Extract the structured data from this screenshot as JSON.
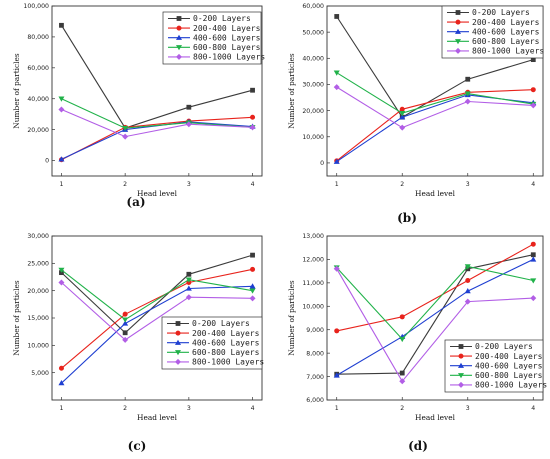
{
  "chart_data": [
    {
      "type": "line",
      "panel_label": "(a)",
      "xlabel": "Head level",
      "ylabel": "Number of particles",
      "x": [
        1,
        2,
        3,
        4
      ],
      "x_tick_labels": [
        "1",
        "2",
        "3",
        "4"
      ],
      "ylim": [
        -10000,
        100000
      ],
      "y_ticks": [
        0,
        20000,
        40000,
        60000,
        80000,
        100000
      ],
      "y_tick_labels": [
        "0",
        "20,000",
        "40,000",
        "60,000",
        "80,000",
        "100,000"
      ],
      "legend_position": "top-right",
      "series": [
        {
          "name": "0-200 Layers",
          "values": [
            87500,
            21000,
            34500,
            45500
          ]
        },
        {
          "name": "200-400 Layers",
          "values": [
            500,
            21500,
            25500,
            28000
          ]
        },
        {
          "name": "400-600 Layers",
          "values": [
            800,
            20000,
            25000,
            22000
          ]
        },
        {
          "name": "600-800 Layers",
          "values": [
            40000,
            21000,
            24500,
            21500
          ]
        },
        {
          "name": "800-1000 Layers",
          "values": [
            33000,
            15500,
            23500,
            21500
          ]
        }
      ]
    },
    {
      "type": "line",
      "panel_label": "(b)",
      "xlabel": "Head level",
      "ylabel": "Number of particles",
      "x": [
        1,
        2,
        3,
        4
      ],
      "x_tick_labels": [
        "1",
        "2",
        "3",
        "4"
      ],
      "ylim": [
        -5000,
        60000
      ],
      "y_ticks": [
        0,
        10000,
        20000,
        30000,
        40000,
        50000,
        60000
      ],
      "y_tick_labels": [
        "0",
        "10,000",
        "20,000",
        "30,000",
        "40,000",
        "50,000",
        "60,000"
      ],
      "legend_position": "top-right",
      "series": [
        {
          "name": "0-200 Layers",
          "values": [
            56000,
            17500,
            32000,
            39500
          ]
        },
        {
          "name": "200-400 Layers",
          "values": [
            800,
            20500,
            27000,
            28000
          ]
        },
        {
          "name": "400-600 Layers",
          "values": [
            500,
            17500,
            26000,
            23000
          ]
        },
        {
          "name": "600-800 Layers",
          "values": [
            34500,
            19000,
            26500,
            22500
          ]
        },
        {
          "name": "800-1000 Layers",
          "values": [
            29000,
            13500,
            23500,
            22000
          ]
        }
      ]
    },
    {
      "type": "line",
      "panel_label": "(c)",
      "xlabel": "Head level",
      "ylabel": "Number of particles",
      "x": [
        1,
        2,
        3,
        4
      ],
      "x_tick_labels": [
        "1",
        "2",
        "3",
        "4"
      ],
      "ylim": [
        0,
        30000
      ],
      "y_ticks": [
        5000,
        10000,
        15000,
        20000,
        25000,
        30000
      ],
      "y_tick_labels": [
        "5,000",
        "10,000",
        "15,000",
        "20,000",
        "25,000",
        "30,000"
      ],
      "legend_position": "bottom-right",
      "series": [
        {
          "name": "0-200 Layers",
          "values": [
            23300,
            12300,
            23000,
            26500
          ]
        },
        {
          "name": "200-400 Layers",
          "values": [
            5800,
            15700,
            21500,
            23900
          ]
        },
        {
          "name": "400-600 Layers",
          "values": [
            3100,
            14000,
            20400,
            20800
          ]
        },
        {
          "name": "600-800 Layers",
          "values": [
            23800,
            14700,
            22000,
            20000
          ]
        },
        {
          "name": "800-1000 Layers",
          "values": [
            21500,
            11000,
            18800,
            18600
          ]
        }
      ]
    },
    {
      "type": "line",
      "panel_label": "(d)",
      "xlabel": "Head level",
      "ylabel": "Number of particles",
      "x": [
        1,
        2,
        3,
        4
      ],
      "x_tick_labels": [
        "1",
        "2",
        "3",
        "4"
      ],
      "ylim": [
        6000,
        13000
      ],
      "y_ticks": [
        6000,
        7000,
        8000,
        9000,
        10000,
        11000,
        12000,
        13000
      ],
      "y_tick_labels": [
        "6,000",
        "7,000",
        "8,000",
        "9,000",
        "10,000",
        "11,000",
        "12,000",
        "13,000"
      ],
      "legend_position": "bottom-right",
      "series": [
        {
          "name": "0-200 Layers",
          "values": [
            7100,
            7150,
            11600,
            12200
          ]
        },
        {
          "name": "200-400 Layers",
          "values": [
            8950,
            9550,
            11100,
            12650
          ]
        },
        {
          "name": "400-600 Layers",
          "values": [
            7050,
            8700,
            10650,
            12000
          ]
        },
        {
          "name": "600-800 Layers",
          "values": [
            11650,
            8600,
            11700,
            11100
          ]
        },
        {
          "name": "800-1000 Layers",
          "values": [
            11600,
            6800,
            10200,
            10350
          ]
        }
      ]
    }
  ],
  "series_style": {
    "colors": [
      "#3b3b3b",
      "#e8231c",
      "#1f3fd1",
      "#21b24a",
      "#b25ee6"
    ],
    "markers": [
      "square",
      "circle",
      "triangle-up",
      "triangle-down",
      "diamond"
    ]
  }
}
